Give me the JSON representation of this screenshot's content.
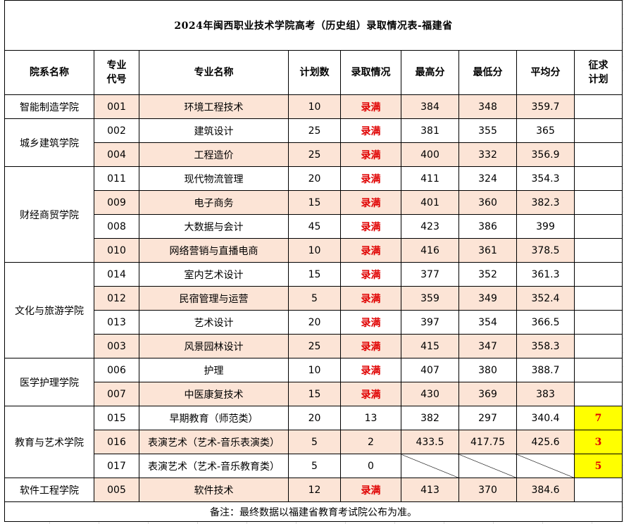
{
  "title": "2024年闽西职业技术学院高考（历史组）录取情况表-福建省",
  "headers": {
    "college": "院系名称",
    "code_line1": "专业",
    "code_line2": "代号",
    "major": "专业名称",
    "plan": "计划数",
    "status": "录取情况",
    "max": "最高分",
    "min": "最低分",
    "avg": "平均分",
    "extra_line1": "征求",
    "extra_line2": "计划"
  },
  "colleges": [
    "智能制造学院",
    "城乡建筑学院",
    "财经商贸学院",
    "文化与旅游学院",
    "医学护理学院",
    "教育与艺术学院",
    "软件工程学院"
  ],
  "rows": [
    {
      "code": "001",
      "major": "环境工程技术",
      "plan": "10",
      "status": "录满",
      "max": "384",
      "min": "348",
      "avg": "359.7",
      "extra": ""
    },
    {
      "code": "002",
      "major": "建筑设计",
      "plan": "25",
      "status": "录满",
      "max": "381",
      "min": "355",
      "avg": "365",
      "extra": ""
    },
    {
      "code": "004",
      "major": "工程造价",
      "plan": "25",
      "status": "录满",
      "max": "400",
      "min": "332",
      "avg": "356.9",
      "extra": ""
    },
    {
      "code": "011",
      "major": "现代物流管理",
      "plan": "20",
      "status": "录满",
      "max": "411",
      "min": "324",
      "avg": "354.3",
      "extra": ""
    },
    {
      "code": "009",
      "major": "电子商务",
      "plan": "15",
      "status": "录满",
      "max": "401",
      "min": "360",
      "avg": "382.3",
      "extra": ""
    },
    {
      "code": "008",
      "major": "大数据与会计",
      "plan": "45",
      "status": "录满",
      "max": "423",
      "min": "386",
      "avg": "399",
      "extra": ""
    },
    {
      "code": "010",
      "major": "网络营销与直播电商",
      "plan": "10",
      "status": "录满",
      "max": "416",
      "min": "361",
      "avg": "378.5",
      "extra": ""
    },
    {
      "code": "014",
      "major": "室内艺术设计",
      "plan": "15",
      "status": "录满",
      "max": "377",
      "min": "352",
      "avg": "361.3",
      "extra": ""
    },
    {
      "code": "012",
      "major": "民宿管理与运营",
      "plan": "5",
      "status": "录满",
      "max": "359",
      "min": "349",
      "avg": "352.4",
      "extra": ""
    },
    {
      "code": "013",
      "major": "艺术设计",
      "plan": "20",
      "status": "录满",
      "max": "397",
      "min": "354",
      "avg": "366.5",
      "extra": ""
    },
    {
      "code": "003",
      "major": "风景园林设计",
      "plan": "25",
      "status": "录满",
      "max": "415",
      "min": "347",
      "avg": "358.3",
      "extra": ""
    },
    {
      "code": "006",
      "major": "护理",
      "plan": "10",
      "status": "录满",
      "max": "407",
      "min": "380",
      "avg": "388.7",
      "extra": ""
    },
    {
      "code": "007",
      "major": "中医康复技术",
      "plan": "15",
      "status": "录满",
      "max": "430",
      "min": "369",
      "avg": "383",
      "extra": ""
    },
    {
      "code": "015",
      "major": "早期教育（师范类）",
      "plan": "20",
      "status": "13",
      "max": "382",
      "min": "297",
      "avg": "340.4",
      "extra": "7"
    },
    {
      "code": "016",
      "major": "表演艺术（艺术-音乐表演类）",
      "plan": "5",
      "status": "2",
      "max": "433.5",
      "min": "417.75",
      "avg": "425.6",
      "extra": "3"
    },
    {
      "code": "017",
      "major": "表演艺术（艺术-音乐教育类）",
      "plan": "5",
      "status": "0",
      "max": "",
      "min": "",
      "avg": "",
      "extra": "5"
    },
    {
      "code": "005",
      "major": "软件技术",
      "plan": "12",
      "status": "录满",
      "max": "413",
      "min": "370",
      "avg": "384.6",
      "extra": ""
    }
  ],
  "note": "备注：最终数据以福建省教育考试院公布为准。",
  "colors": {
    "shade": "#fce4d6",
    "full_text": "#e00000",
    "quota_bg": "#ffff00"
  }
}
